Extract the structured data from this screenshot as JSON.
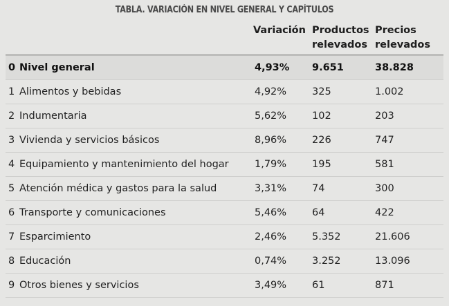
{
  "title": "TABLA. VARIACIÓN EN NIVEL GENERAL Y CAPÍTULOS",
  "headers": {
    "variacion": "Variación",
    "productos_1": "Productos",
    "productos_2": "relevados",
    "precios_1": "Precios",
    "precios_2": "relevados"
  },
  "rows": [
    {
      "num": "0",
      "name": "Nivel general",
      "variacion": "4,93%",
      "productos": "9.651",
      "precios": "38.828"
    },
    {
      "num": "1",
      "name": "Alimentos y bebidas",
      "variacion": "4,92%",
      "productos": "325",
      "precios": "1.002"
    },
    {
      "num": "2",
      "name": "Indumentaria",
      "variacion": "5,62%",
      "productos": "102",
      "precios": "203"
    },
    {
      "num": "3",
      "name": "Vivienda y servicios básicos",
      "variacion": "8,96%",
      "productos": "226",
      "precios": "747"
    },
    {
      "num": "4",
      "name": "Equipamiento y mantenimiento del hogar",
      "variacion": "1,79%",
      "productos": "195",
      "precios": "581"
    },
    {
      "num": "5",
      "name": "Atención médica y gastos para la salud",
      "variacion": "3,31%",
      "productos": "74",
      "precios": "300"
    },
    {
      "num": "6",
      "name": "Transporte y comunicaciones",
      "variacion": "5,46%",
      "productos": "64",
      "precios": "422"
    },
    {
      "num": "7",
      "name": "Esparcimiento",
      "variacion": "2,46%",
      "productos": "5.352",
      "precios": "21.606"
    },
    {
      "num": "8",
      "name": "Educación",
      "variacion": "0,74%",
      "productos": "3.252",
      "precios": "13.096"
    },
    {
      "num": "9",
      "name": "Otros bienes y servicios",
      "variacion": "3,49%",
      "productos": "61",
      "precios": "871"
    }
  ]
}
